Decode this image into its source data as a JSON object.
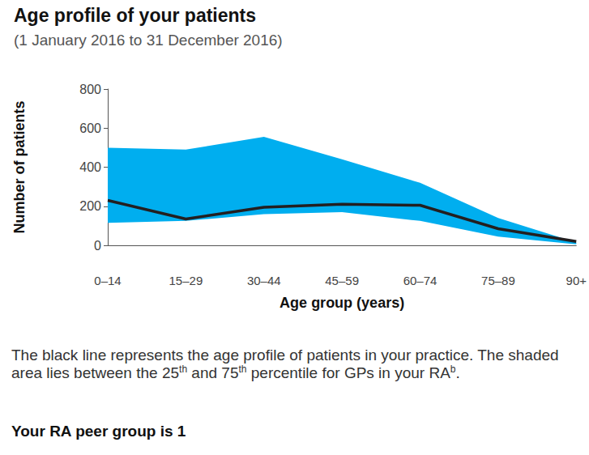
{
  "chart_data": {
    "type": "line",
    "title": "Age profile of your patients",
    "subtitle": "(1 January 2016 to 31 December 2016)",
    "x_label": "Age group (years)",
    "y_label": "Number of patients",
    "categories": [
      "0–14",
      "15–29",
      "30–44",
      "45–59",
      "60–74",
      "75–89",
      "90+"
    ],
    "series": [
      {
        "type": "band",
        "color": "#00aeef",
        "lower": [
          115,
          125,
          160,
          170,
          125,
          45,
          5
        ],
        "upper": [
          500,
          490,
          555,
          440,
          320,
          140,
          15
        ]
      },
      {
        "type": "line",
        "color": "#231f20",
        "values": [
          230,
          135,
          195,
          210,
          205,
          85,
          20
        ]
      }
    ],
    "ylim": [
      0,
      800
    ],
    "yticks": [
      0,
      200,
      400,
      600,
      800
    ],
    "grid": false,
    "note": [
      {
        "text": "The black line represents the age profile of patients in your practice. The shaded area lies between the 25"
      },
      {
        "sup": "th"
      },
      {
        "text": " and 75"
      },
      {
        "sup": "th"
      },
      {
        "text": " percentile for GPs in your RA"
      },
      {
        "sup": "b"
      },
      {
        "text": "."
      }
    ],
    "peer_group_text": "Your RA peer group is 1"
  }
}
